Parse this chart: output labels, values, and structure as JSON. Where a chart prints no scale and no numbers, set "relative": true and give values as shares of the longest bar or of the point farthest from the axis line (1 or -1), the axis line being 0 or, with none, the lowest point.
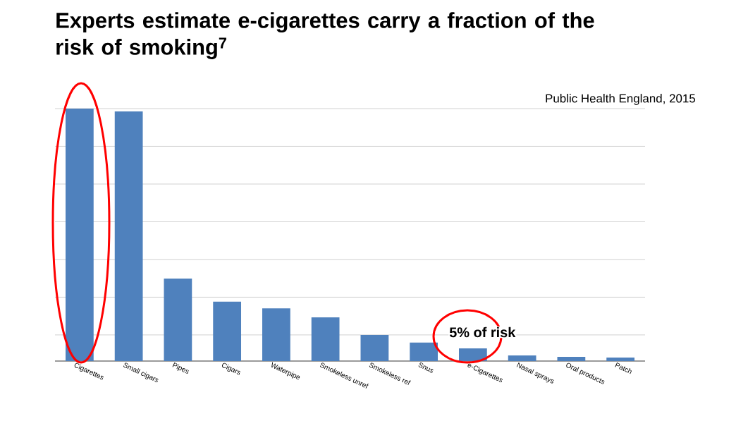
{
  "chart_data": {
    "type": "bar",
    "title": "Experts estimate e-cigarettes carry a fraction of the risk of smoking$^{7}$",
    "relative": true,
    "grid": "y",
    "color": "#4f81bd",
    "categories": [
      "Cigarettes",
      "Small cigars",
      "Pipes",
      "Cigars",
      "Waterpipe",
      "Smokeless unref",
      "Smokeless ref",
      "Snus",
      "e-Cigarettes",
      "Nasal sprays",
      "Oral products",
      "Patch"
    ],
    "values": [
      1,
      0.989,
      0.327,
      0.235,
      0.209,
      0.173,
      0.103,
      0.073,
      0.05,
      0.022,
      0.017,
      0.014
    ],
    "annotations": [
      "Public Health England, 2015",
      "5% of risk"
    ]
  }
}
